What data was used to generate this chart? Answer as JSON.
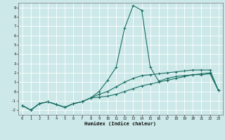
{
  "xlabel": "Humidex (Indice chaleur)",
  "xlim": [
    -0.5,
    23.5
  ],
  "ylim": [
    -2.5,
    9.5
  ],
  "xticks": [
    0,
    1,
    2,
    3,
    4,
    5,
    6,
    7,
    8,
    9,
    10,
    11,
    12,
    13,
    14,
    15,
    16,
    17,
    18,
    19,
    20,
    21,
    22,
    23
  ],
  "yticks": [
    -2,
    -1,
    0,
    1,
    2,
    3,
    4,
    5,
    6,
    7,
    8,
    9
  ],
  "bg_color": "#cce8e8",
  "grid_color": "#ffffff",
  "line_color": "#1a6e64",
  "line1_x": [
    0,
    1,
    2,
    3,
    4,
    5,
    6,
    7,
    8,
    9,
    10,
    11,
    12,
    13,
    14,
    15,
    16,
    17,
    18,
    19,
    20,
    21,
    22,
    23
  ],
  "line1_y": [
    -1.5,
    -2.0,
    -1.3,
    -1.1,
    -1.4,
    -1.7,
    -1.3,
    -1.1,
    -0.7,
    -0.3,
    0.0,
    0.5,
    1.0,
    1.4,
    1.7,
    1.8,
    1.9,
    2.0,
    2.1,
    2.2,
    2.3,
    2.3,
    2.3,
    0.1
  ],
  "line2_x": [
    0,
    1,
    2,
    3,
    4,
    5,
    6,
    7,
    8,
    9,
    10,
    11,
    12,
    13,
    14,
    15,
    16,
    17,
    18,
    19,
    20,
    21,
    22,
    23
  ],
  "line2_y": [
    -1.5,
    -2.0,
    -1.3,
    -1.1,
    -1.4,
    -1.7,
    -1.3,
    -1.1,
    -0.7,
    0.0,
    1.2,
    2.6,
    6.8,
    9.2,
    8.7,
    2.6,
    1.1,
    1.4,
    1.6,
    1.7,
    1.8,
    1.8,
    1.9,
    0.1
  ],
  "line3_x": [
    0,
    1,
    2,
    3,
    4,
    5,
    6,
    7,
    8,
    9,
    10,
    11,
    12,
    13,
    14,
    15,
    16,
    17,
    18,
    19,
    20,
    21,
    22,
    23
  ],
  "line3_y": [
    -1.5,
    -2.0,
    -1.3,
    -1.1,
    -1.4,
    -1.7,
    -1.3,
    -1.1,
    -0.7,
    -0.6,
    -0.5,
    -0.3,
    0.0,
    0.3,
    0.6,
    0.8,
    1.0,
    1.2,
    1.4,
    1.6,
    1.8,
    1.9,
    2.0,
    0.1
  ]
}
